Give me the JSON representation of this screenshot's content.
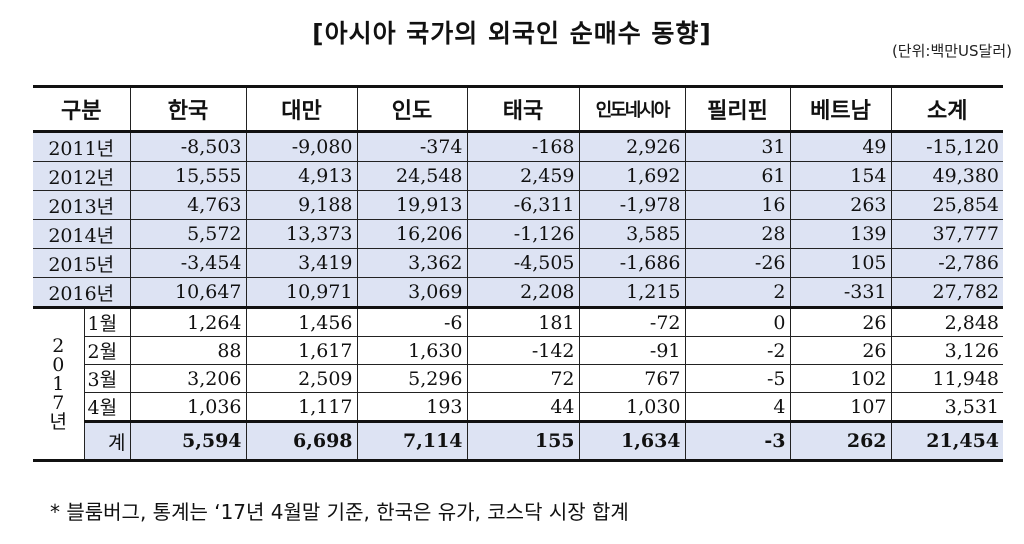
{
  "title": "[아시아 국가의 외국인 순매수 동향]",
  "unit": "(단위:백만US달러)",
  "chart_data": {
    "type": "table",
    "title": "[아시아 국가의 외국인 순매수 동향]",
    "unit": "(단위:백만US달러)",
    "columns": [
      "구분",
      "한국",
      "대만",
      "인도",
      "태국",
      "인도네시아",
      "필리핀",
      "베트남",
      "소계"
    ],
    "rows": [
      {
        "label": "2011년",
        "values": [
          "-8,503",
          "-9,080",
          "-374",
          "-168",
          "2,926",
          "31",
          "49",
          "-15,120"
        ]
      },
      {
        "label": "2012년",
        "values": [
          "15,555",
          "4,913",
          "24,548",
          "2,459",
          "1,692",
          "61",
          "154",
          "49,380"
        ]
      },
      {
        "label": "2013년",
        "values": [
          "4,763",
          "9,188",
          "19,913",
          "-6,311",
          "-1,978",
          "16",
          "263",
          "25,854"
        ]
      },
      {
        "label": "2014년",
        "values": [
          "5,572",
          "13,373",
          "16,206",
          "-1,126",
          "3,585",
          "28",
          "139",
          "37,777"
        ]
      },
      {
        "label": "2015년",
        "values": [
          "-3,454",
          "3,419",
          "3,362",
          "-4,505",
          "-1,686",
          "-26",
          "105",
          "-2,786"
        ]
      },
      {
        "label": "2016년",
        "values": [
          "10,647",
          "10,971",
          "3,069",
          "2,208",
          "1,215",
          "2",
          "-331",
          "27,782"
        ]
      }
    ],
    "year_2017": {
      "group_label": [
        "2",
        "0",
        "1",
        "7",
        "년"
      ],
      "months": [
        {
          "label": "1월",
          "values": [
            "1,264",
            "1,456",
            "-6",
            "181",
            "-72",
            "0",
            "26",
            "2,848"
          ]
        },
        {
          "label": "2월",
          "values": [
            "88",
            "1,617",
            "1,630",
            "-142",
            "-91",
            "-2",
            "26",
            "3,126"
          ]
        },
        {
          "label": "3월",
          "values": [
            "3,206",
            "2,509",
            "5,296",
            "72",
            "767",
            "-5",
            "102",
            "11,948"
          ]
        },
        {
          "label": "4월",
          "values": [
            "1,036",
            "1,117",
            "193",
            "44",
            "1,030",
            "4",
            "107",
            "3,531"
          ]
        }
      ],
      "total": {
        "label": "계",
        "values": [
          "5,594",
          "6,698",
          "7,114",
          "155",
          "1,634",
          "-3",
          "262",
          "21,454"
        ]
      }
    }
  },
  "table": {
    "headers": [
      "구분",
      "한국",
      "대만",
      "인도",
      "태국",
      "인도네시아",
      "필리핀",
      "베트남",
      "소계"
    ]
  },
  "footnote": "* 블룸버그, 통계는 ‘17년 4월말 기준, 한국은 유가, 코스닥 시장 합계",
  "colors": {
    "shaded_row": "#dde3f3",
    "border": "#111111"
  }
}
